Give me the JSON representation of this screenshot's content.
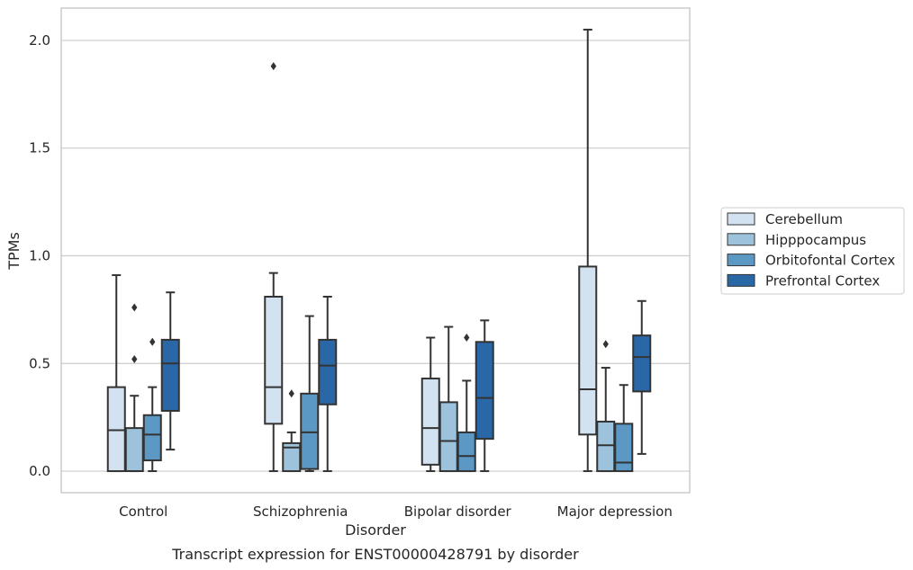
{
  "chart_data": {
    "type": "box",
    "title": "",
    "caption": "Transcript expression for ENST00000428791 by disorder",
    "xlabel": "Disorder",
    "ylabel": "TPMs",
    "ylim": [
      -0.1,
      2.15
    ],
    "yticks": [
      0.0,
      0.5,
      1.0,
      1.5,
      2.0
    ],
    "ytick_labels": [
      "0.0",
      "0.5",
      "1.0",
      "1.5",
      "2.0"
    ],
    "grid": true,
    "legend_position": "right",
    "categories": [
      "Control",
      "Schizophrenia",
      "Bipolar disorder",
      "Major depression"
    ],
    "colors": {
      "box_edge": "#333333",
      "grid": "#cccccc",
      "frame": "#cccccc"
    },
    "series": [
      {
        "name": "Cerebellum",
        "color": "#d3e2f1",
        "boxes": [
          {
            "whisker_low": 0.0,
            "q1": 0.0,
            "median": 0.19,
            "q3": 0.39,
            "whisker_high": 0.91,
            "outliers": []
          },
          {
            "whisker_low": 0.0,
            "q1": 0.22,
            "median": 0.39,
            "q3": 0.81,
            "whisker_high": 0.92,
            "outliers": [
              1.88
            ]
          },
          {
            "whisker_low": 0.0,
            "q1": 0.03,
            "median": 0.2,
            "q3": 0.43,
            "whisker_high": 0.62,
            "outliers": []
          },
          {
            "whisker_low": 0.0,
            "q1": 0.17,
            "median": 0.38,
            "q3": 0.95,
            "whisker_high": 2.05,
            "outliers": []
          }
        ]
      },
      {
        "name": "Hipppocampus",
        "color": "#9dc2db",
        "boxes": [
          {
            "whisker_low": 0.0,
            "q1": 0.0,
            "median": 0.0,
            "q3": 0.2,
            "whisker_high": 0.35,
            "outliers": [
              0.52,
              0.76
            ]
          },
          {
            "whisker_low": 0.0,
            "q1": 0.0,
            "median": 0.11,
            "q3": 0.13,
            "whisker_high": 0.18,
            "outliers": [
              0.36
            ]
          },
          {
            "whisker_low": 0.0,
            "q1": 0.0,
            "median": 0.14,
            "q3": 0.32,
            "whisker_high": 0.67,
            "outliers": []
          },
          {
            "whisker_low": 0.0,
            "q1": 0.0,
            "median": 0.12,
            "q3": 0.23,
            "whisker_high": 0.48,
            "outliers": [
              0.59
            ]
          }
        ]
      },
      {
        "name": "Orbitofontal Cortex",
        "color": "#5b98c3",
        "boxes": [
          {
            "whisker_low": 0.0,
            "q1": 0.05,
            "median": 0.17,
            "q3": 0.26,
            "whisker_high": 0.39,
            "outliers": [
              0.6
            ]
          },
          {
            "whisker_low": 0.0,
            "q1": 0.01,
            "median": 0.18,
            "q3": 0.36,
            "whisker_high": 0.72,
            "outliers": []
          },
          {
            "whisker_low": 0.0,
            "q1": 0.0,
            "median": 0.07,
            "q3": 0.18,
            "whisker_high": 0.42,
            "outliers": [
              0.62
            ]
          },
          {
            "whisker_low": 0.0,
            "q1": 0.0,
            "median": 0.04,
            "q3": 0.22,
            "whisker_high": 0.4,
            "outliers": []
          }
        ]
      },
      {
        "name": "Prefrontal Cortex",
        "color": "#2a67a6",
        "boxes": [
          {
            "whisker_low": 0.1,
            "q1": 0.28,
            "median": 0.5,
            "q3": 0.61,
            "whisker_high": 0.83,
            "outliers": []
          },
          {
            "whisker_low": 0.0,
            "q1": 0.31,
            "median": 0.49,
            "q3": 0.61,
            "whisker_high": 0.81,
            "outliers": []
          },
          {
            "whisker_low": 0.0,
            "q1": 0.15,
            "median": 0.34,
            "q3": 0.6,
            "whisker_high": 0.7,
            "outliers": []
          },
          {
            "whisker_low": 0.08,
            "q1": 0.37,
            "median": 0.53,
            "q3": 0.63,
            "whisker_high": 0.79,
            "outliers": []
          }
        ]
      }
    ]
  }
}
